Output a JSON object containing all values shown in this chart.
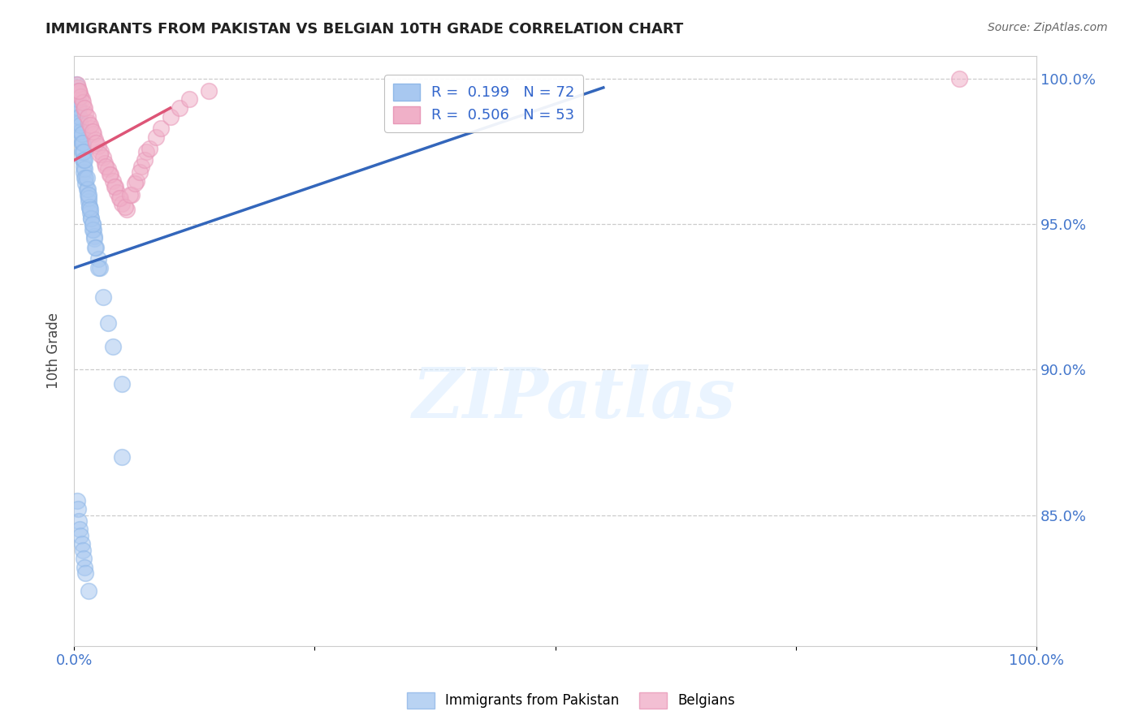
{
  "title": "IMMIGRANTS FROM PAKISTAN VS BELGIAN 10TH GRADE CORRELATION CHART",
  "source": "Source: ZipAtlas.com",
  "ylabel": "10th Grade",
  "xlim": [
    0.0,
    1.0
  ],
  "ylim": [
    0.805,
    1.008
  ],
  "x_ticks": [
    0.0,
    0.25,
    0.5,
    0.75,
    1.0
  ],
  "x_tick_labels": [
    "0.0%",
    "",
    "",
    "",
    "100.0%"
  ],
  "y_ticks": [
    0.85,
    0.9,
    0.95,
    1.0
  ],
  "y_tick_labels": [
    "85.0%",
    "90.0%",
    "95.0%",
    "100.0%"
  ],
  "grid_color": "#cccccc",
  "background_color": "#ffffff",
  "legend_R1": "0.199",
  "legend_N1": "72",
  "legend_R2": "0.506",
  "legend_N2": "53",
  "blue_color": "#a8c8f0",
  "pink_color": "#f0b0c8",
  "blue_edge_color": "#90b8e8",
  "pink_edge_color": "#e898b8",
  "blue_line_color": "#3366bb",
  "pink_line_color": "#dd5577",
  "watermark_text": "ZIPatlas",
  "blue_scatter_x": [
    0.004,
    0.005,
    0.006,
    0.007,
    0.008,
    0.008,
    0.009,
    0.01,
    0.01,
    0.011,
    0.012,
    0.013,
    0.014,
    0.015,
    0.016,
    0.017,
    0.018,
    0.019,
    0.02,
    0.021,
    0.003,
    0.003,
    0.004,
    0.005,
    0.006,
    0.007,
    0.008,
    0.009,
    0.01,
    0.011,
    0.012,
    0.014,
    0.015,
    0.016,
    0.018,
    0.019,
    0.021,
    0.023,
    0.025,
    0.027,
    0.002,
    0.003,
    0.004,
    0.005,
    0.006,
    0.007,
    0.008,
    0.009,
    0.01,
    0.011,
    0.013,
    0.015,
    0.017,
    0.019,
    0.022,
    0.025,
    0.03,
    0.035,
    0.04,
    0.05,
    0.003,
    0.004,
    0.005,
    0.006,
    0.007,
    0.008,
    0.009,
    0.01,
    0.011,
    0.012,
    0.015,
    0.05
  ],
  "blue_scatter_y": [
    0.99,
    0.985,
    0.982,
    0.98,
    0.978,
    0.975,
    0.972,
    0.97,
    0.968,
    0.966,
    0.964,
    0.962,
    0.96,
    0.958,
    0.956,
    0.954,
    0.952,
    0.95,
    0.948,
    0.946,
    0.996,
    0.993,
    0.99,
    0.987,
    0.985,
    0.982,
    0.978,
    0.975,
    0.972,
    0.969,
    0.966,
    0.962,
    0.959,
    0.956,
    0.952,
    0.948,
    0.945,
    0.942,
    0.938,
    0.935,
    0.998,
    0.995,
    0.993,
    0.99,
    0.987,
    0.984,
    0.981,
    0.978,
    0.975,
    0.972,
    0.966,
    0.96,
    0.955,
    0.95,
    0.942,
    0.935,
    0.925,
    0.916,
    0.908,
    0.895,
    0.855,
    0.852,
    0.848,
    0.845,
    0.843,
    0.84,
    0.838,
    0.835,
    0.832,
    0.83,
    0.824,
    0.87
  ],
  "pink_scatter_x": [
    0.004,
    0.006,
    0.008,
    0.01,
    0.012,
    0.015,
    0.018,
    0.02,
    0.022,
    0.025,
    0.028,
    0.03,
    0.032,
    0.035,
    0.038,
    0.04,
    0.043,
    0.045,
    0.048,
    0.05,
    0.055,
    0.06,
    0.065,
    0.07,
    0.075,
    0.003,
    0.005,
    0.007,
    0.009,
    0.011,
    0.014,
    0.017,
    0.019,
    0.023,
    0.027,
    0.033,
    0.037,
    0.042,
    0.047,
    0.053,
    0.058,
    0.063,
    0.068,
    0.073,
    0.078,
    0.085,
    0.09,
    0.1,
    0.11,
    0.12,
    0.14,
    0.92,
    0.005
  ],
  "pink_scatter_y": [
    0.997,
    0.995,
    0.993,
    0.99,
    0.988,
    0.985,
    0.983,
    0.981,
    0.979,
    0.977,
    0.975,
    0.973,
    0.971,
    0.969,
    0.967,
    0.965,
    0.963,
    0.961,
    0.959,
    0.957,
    0.955,
    0.96,
    0.965,
    0.97,
    0.975,
    0.998,
    0.996,
    0.994,
    0.992,
    0.99,
    0.987,
    0.984,
    0.982,
    0.978,
    0.974,
    0.97,
    0.967,
    0.963,
    0.959,
    0.956,
    0.96,
    0.964,
    0.968,
    0.972,
    0.976,
    0.98,
    0.983,
    0.987,
    0.99,
    0.993,
    0.996,
    1.0,
    0.996
  ],
  "blue_trend_x0": 0.0,
  "blue_trend_x1": 0.55,
  "blue_trend_y0": 0.935,
  "blue_trend_y1": 0.997,
  "pink_trend_x0": 0.0,
  "pink_trend_x1": 0.1,
  "pink_trend_y0": 0.972,
  "pink_trend_y1": 0.99
}
